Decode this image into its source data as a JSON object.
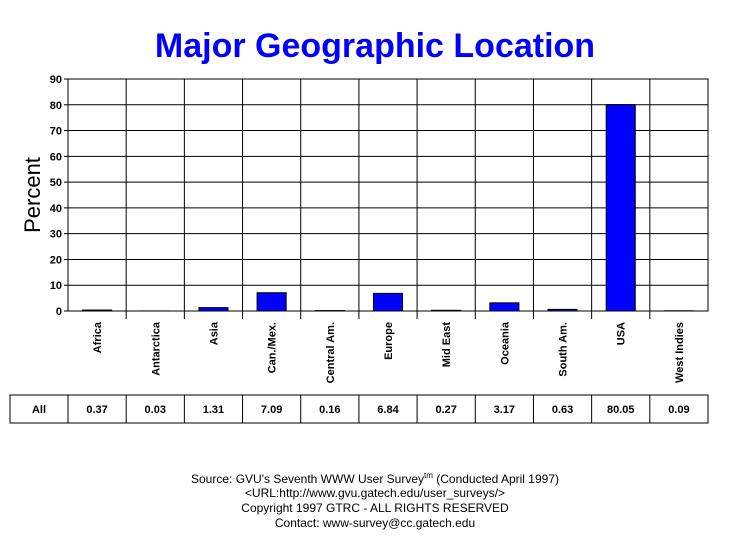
{
  "chart_data": {
    "type": "bar",
    "title": "Major Geographic Location",
    "y_label": "Percent",
    "categories": [
      "Africa",
      "Antarctica",
      "Asia",
      "Can./Mex.",
      "Central Am.",
      "Europe",
      "Mid East",
      "Oceania",
      "South Am.",
      "USA",
      "West Indies"
    ],
    "series": [
      {
        "name": "All",
        "color": "#0000ff",
        "values": [
          0.37,
          0.03,
          1.31,
          7.09,
          0.16,
          6.84,
          0.27,
          3.17,
          0.63,
          80.05,
          0.09
        ]
      }
    ],
    "ylim": [
      0,
      90
    ],
    "yticks": [
      0,
      10,
      20,
      30,
      40,
      50,
      60,
      70,
      80,
      90
    ],
    "grid": true,
    "footer": {
      "source": "Source: GVU's Seventh WWW User Survey",
      "tm": "tm",
      "source_tail": " (Conducted April 1997)",
      "url": "<URL:http://www.gvu.gatech.edu/user_surveys/>",
      "copyright": "Copyright 1997 GTRC - ALL RIGHTS RESERVED",
      "contact": "Contact: www-survey@cc.gatech.edu"
    }
  }
}
